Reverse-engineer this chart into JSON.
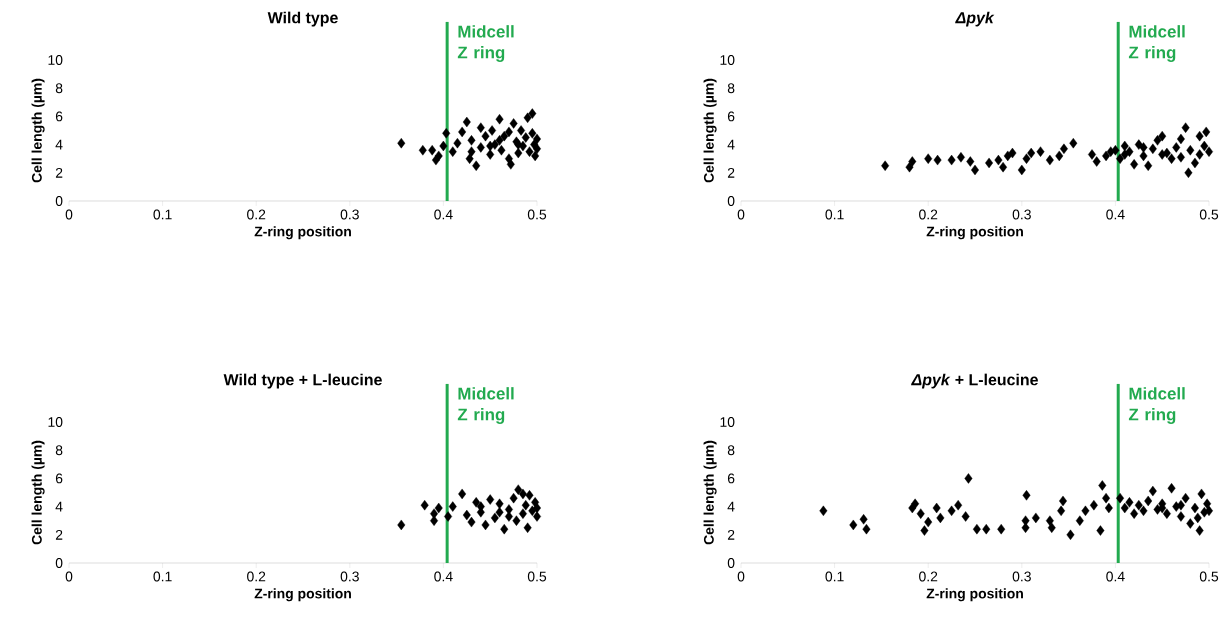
{
  "chart_data": [
    {
      "type": "scatter",
      "title": "Wild type",
      "xlabel": "Z-ring position",
      "ylabel": "Cell length (µm)",
      "color": "#000000",
      "marker": "diamond",
      "xlim": [
        0,
        0.5
      ],
      "ylim": [
        0,
        10
      ],
      "xticks": [
        0,
        0.1,
        0.2,
        0.3,
        0.4,
        0.5
      ],
      "yticks": [
        0,
        2,
        4,
        6,
        8,
        10
      ],
      "ref_lines": [
        {
          "axis": "x",
          "value": 0.404,
          "label": "Midcell Z ring",
          "color": "#22aa4f"
        }
      ],
      "x": [
        0.355,
        0.378,
        0.392,
        0.388,
        0.395,
        0.4,
        0.403,
        0.41,
        0.415,
        0.42,
        0.425,
        0.428,
        0.43,
        0.435,
        0.44,
        0.44,
        0.445,
        0.45,
        0.452,
        0.455,
        0.46,
        0.462,
        0.465,
        0.47,
        0.472,
        0.475,
        0.478,
        0.48,
        0.483,
        0.485,
        0.488,
        0.49,
        0.492,
        0.495,
        0.495,
        0.497,
        0.498,
        0.5,
        0.5,
        0.46,
        0.47,
        0.45,
        0.43,
        0.48
      ],
      "values": [
        4.1,
        3.6,
        2.9,
        3.6,
        3.2,
        3.9,
        4.8,
        3.5,
        4.1,
        4.9,
        5.6,
        3.0,
        4.3,
        2.5,
        5.2,
        3.8,
        4.6,
        3.3,
        5.0,
        4.0,
        5.8,
        3.6,
        4.6,
        3.0,
        2.6,
        5.5,
        4.2,
        3.4,
        5.0,
        3.9,
        4.5,
        5.9,
        3.5,
        6.2,
        4.8,
        4.0,
        3.2,
        4.4,
        3.7,
        4.3,
        4.9,
        3.9,
        3.5,
        4.0
      ]
    },
    {
      "type": "scatter",
      "title": "*Δpyk*",
      "xlabel": "Z-ring position",
      "ylabel": "Cell length (µm)",
      "color": "#000000",
      "marker": "diamond",
      "xlim": [
        0,
        0.5
      ],
      "ylim": [
        0,
        10
      ],
      "xticks": [
        0,
        0.1,
        0.2,
        0.3,
        0.4,
        0.5
      ],
      "yticks": [
        0,
        2,
        4,
        6,
        8,
        10
      ],
      "ref_lines": [
        {
          "axis": "x",
          "value": 0.403,
          "label": "Midcell Z ring",
          "color": "#22aa4f"
        }
      ],
      "x": [
        0.154,
        0.18,
        0.183,
        0.2,
        0.21,
        0.225,
        0.235,
        0.245,
        0.25,
        0.265,
        0.275,
        0.28,
        0.285,
        0.29,
        0.3,
        0.305,
        0.31,
        0.32,
        0.33,
        0.34,
        0.345,
        0.355,
        0.375,
        0.38,
        0.39,
        0.395,
        0.405,
        0.41,
        0.415,
        0.42,
        0.425,
        0.43,
        0.435,
        0.44,
        0.445,
        0.45,
        0.455,
        0.46,
        0.465,
        0.47,
        0.475,
        0.48,
        0.485,
        0.478,
        0.49,
        0.495,
        0.497,
        0.5,
        0.45,
        0.47,
        0.49,
        0.43,
        0.41,
        0.4
      ],
      "values": [
        2.5,
        2.4,
        2.8,
        3.0,
        2.9,
        2.9,
        3.1,
        2.8,
        2.2,
        2.7,
        2.9,
        2.4,
        3.2,
        3.4,
        2.2,
        3.0,
        3.4,
        3.5,
        2.9,
        3.2,
        3.7,
        4.1,
        3.3,
        2.8,
        3.2,
        3.5,
        3.0,
        3.9,
        3.5,
        2.6,
        4.0,
        3.2,
        2.5,
        3.7,
        4.3,
        4.6,
        3.4,
        3.0,
        3.8,
        4.4,
        5.2,
        3.6,
        2.7,
        2.0,
        4.6,
        3.9,
        4.9,
        3.5,
        3.3,
        3.1,
        3.3,
        3.8,
        3.3,
        3.6
      ]
    },
    {
      "type": "scatter",
      "title": "Wild type + L-leucine",
      "xlabel": "Z-ring position",
      "ylabel": "Cell length (µm)",
      "color": "#000000",
      "marker": "diamond",
      "xlim": [
        0,
        0.5
      ],
      "ylim": [
        0,
        10
      ],
      "xticks": [
        0,
        0.1,
        0.2,
        0.3,
        0.4,
        0.5
      ],
      "yticks": [
        0,
        2,
        4,
        6,
        8,
        10
      ],
      "ref_lines": [
        {
          "axis": "x",
          "value": 0.404,
          "label": "Midcell Z ring",
          "color": "#22aa4f"
        }
      ],
      "x": [
        0.355,
        0.38,
        0.39,
        0.395,
        0.39,
        0.405,
        0.41,
        0.42,
        0.425,
        0.43,
        0.435,
        0.44,
        0.445,
        0.45,
        0.455,
        0.46,
        0.465,
        0.47,
        0.475,
        0.478,
        0.48,
        0.485,
        0.488,
        0.49,
        0.492,
        0.495,
        0.498,
        0.5,
        0.5,
        0.46,
        0.44,
        0.47,
        0.485
      ],
      "values": [
        2.7,
        4.1,
        3.5,
        3.9,
        3.0,
        3.3,
        4.0,
        4.9,
        3.4,
        2.9,
        4.3,
        3.6,
        2.7,
        4.5,
        3.2,
        4.2,
        2.4,
        3.8,
        4.6,
        3.0,
        5.2,
        3.5,
        4.1,
        2.5,
        4.8,
        3.7,
        4.3,
        3.3,
        3.9,
        3.6,
        4.0,
        3.3,
        4.9
      ]
    },
    {
      "type": "scatter",
      "title": "*Δpyk* + L-leucine",
      "xlabel": "Z-ring position",
      "ylabel": "Cell length (µm)",
      "color": "#000000",
      "marker": "diamond",
      "xlim": [
        0,
        0.5
      ],
      "ylim": [
        0,
        10
      ],
      "xticks": [
        0,
        0.1,
        0.2,
        0.3,
        0.4,
        0.5
      ],
      "yticks": [
        0,
        2,
        4,
        6,
        8,
        10
      ],
      "ref_lines": [
        {
          "axis": "x",
          "value": 0.403,
          "label": "Midcell Z ring",
          "color": "#22aa4f"
        }
      ],
      "x": [
        0.088,
        0.12,
        0.131,
        0.134,
        0.186,
        0.183,
        0.192,
        0.196,
        0.2,
        0.209,
        0.213,
        0.225,
        0.232,
        0.24,
        0.243,
        0.252,
        0.262,
        0.278,
        0.305,
        0.304,
        0.304,
        0.315,
        0.33,
        0.332,
        0.344,
        0.342,
        0.352,
        0.362,
        0.368,
        0.377,
        0.386,
        0.384,
        0.39,
        0.393,
        0.405,
        0.41,
        0.415,
        0.42,
        0.425,
        0.43,
        0.435,
        0.44,
        0.445,
        0.45,
        0.455,
        0.46,
        0.465,
        0.47,
        0.475,
        0.48,
        0.485,
        0.49,
        0.492,
        0.495,
        0.498,
        0.5,
        0.488,
        0.47,
        0.45
      ],
      "values": [
        3.7,
        2.7,
        3.1,
        2.4,
        4.2,
        3.9,
        3.5,
        2.3,
        2.9,
        3.9,
        3.2,
        3.7,
        4.1,
        3.3,
        6.0,
        2.4,
        2.4,
        2.4,
        4.8,
        3.0,
        2.5,
        3.2,
        3.0,
        2.5,
        4.4,
        3.7,
        2.0,
        3.0,
        3.7,
        4.1,
        5.5,
        2.3,
        4.6,
        3.9,
        4.6,
        3.9,
        4.3,
        3.5,
        4.1,
        3.7,
        4.4,
        5.1,
        3.8,
        4.2,
        3.5,
        5.3,
        4.0,
        3.3,
        4.6,
        2.8,
        3.9,
        2.3,
        4.9,
        3.6,
        4.2,
        3.7,
        3.2,
        4.1,
        3.9
      ]
    }
  ]
}
